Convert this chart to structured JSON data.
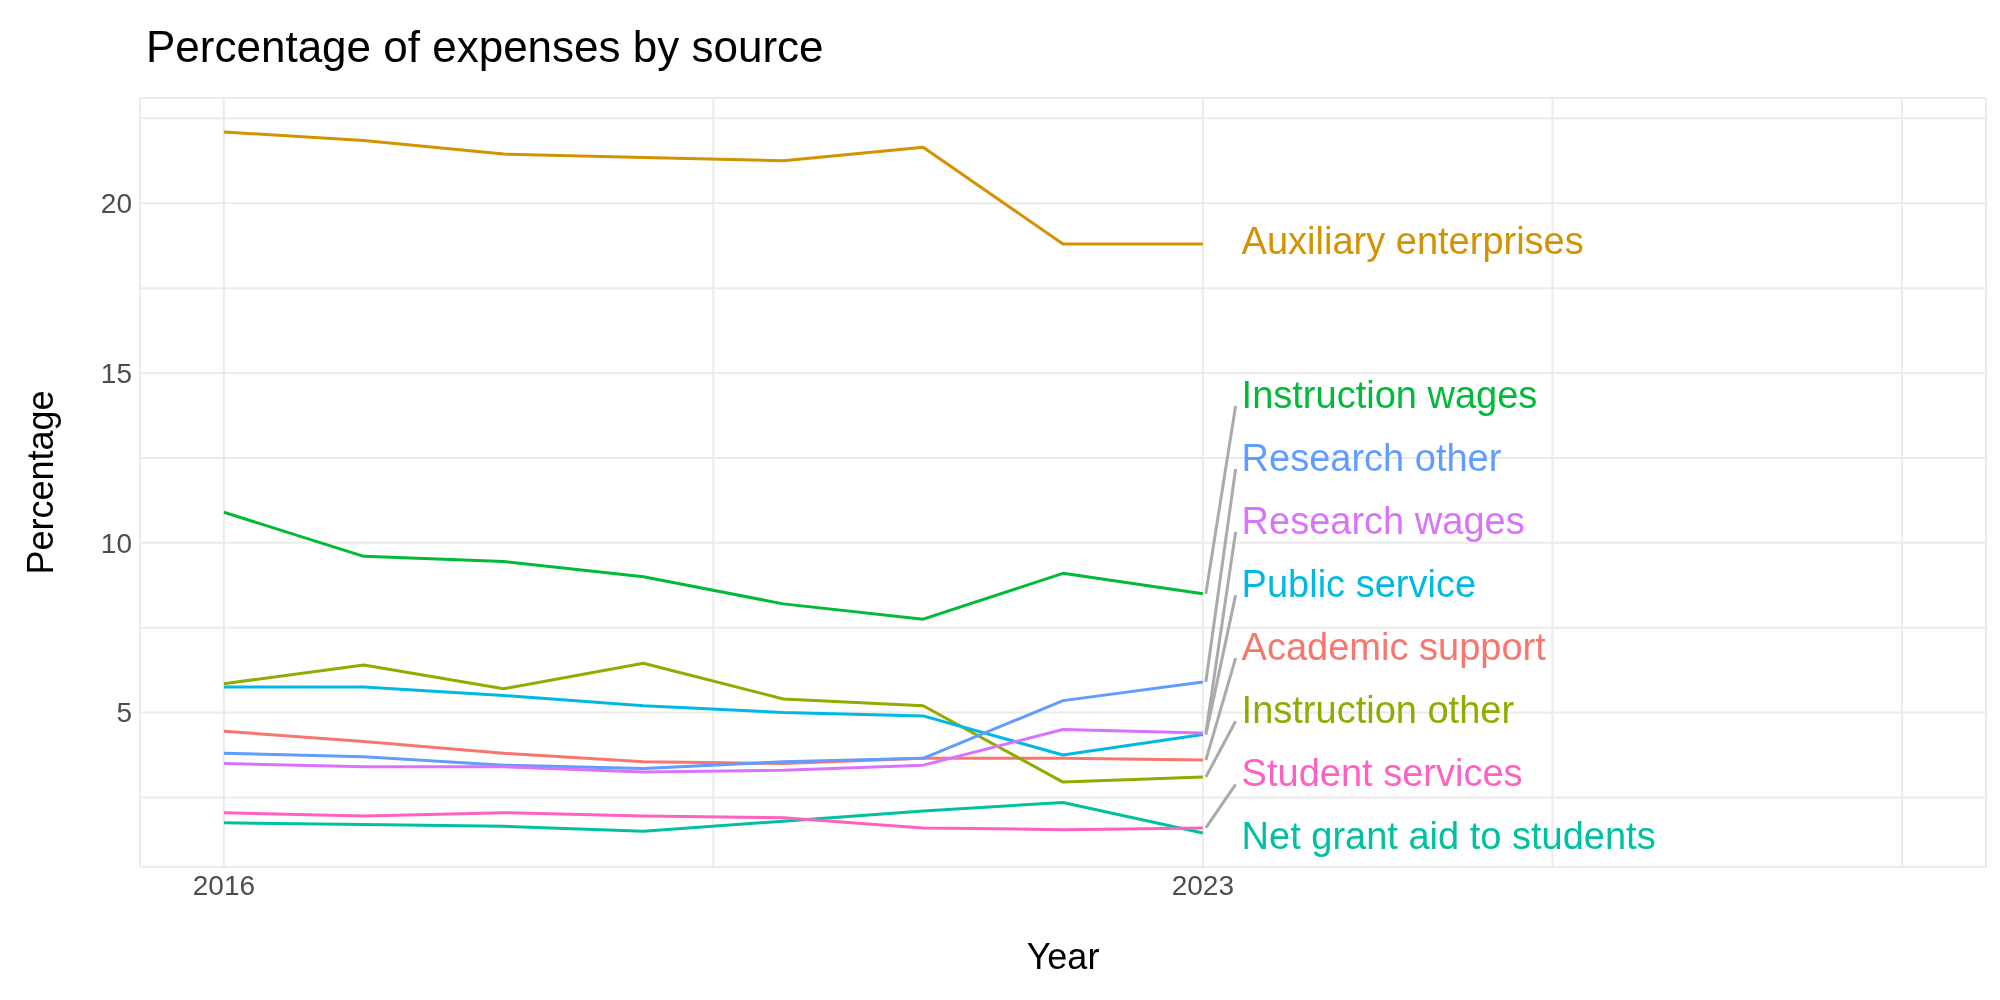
{
  "chart_data": {
    "type": "line",
    "title": "Percentage of expenses by source",
    "xlabel": "Year",
    "ylabel": "Percentage",
    "x": [
      2016,
      2017,
      2018,
      2019,
      2020,
      2021,
      2022,
      2023
    ],
    "series": [
      {
        "name": "Academic support",
        "color": "#f8766d",
        "values": [
          4.45,
          4.15,
          3.8,
          3.55,
          3.5,
          3.65,
          3.65,
          3.6
        ]
      },
      {
        "name": "Auxiliary enterprises",
        "color": "#d39200",
        "values": [
          22.1,
          21.85,
          21.45,
          21.35,
          21.25,
          21.65,
          18.8,
          18.8
        ]
      },
      {
        "name": "Instruction other",
        "color": "#93aa00",
        "values": [
          5.85,
          6.4,
          5.7,
          6.45,
          5.4,
          5.2,
          2.95,
          3.1
        ]
      },
      {
        "name": "Instruction wages",
        "color": "#00ba38",
        "values": [
          10.9,
          9.6,
          9.45,
          9.0,
          8.2,
          7.75,
          9.1,
          8.5
        ]
      },
      {
        "name": "Net grant aid to students",
        "color": "#00c19f",
        "values": [
          1.75,
          1.7,
          1.65,
          1.5,
          1.8,
          2.1,
          2.35,
          1.45
        ]
      },
      {
        "name": "Public service",
        "color": "#00b9e3",
        "values": [
          5.75,
          5.75,
          5.5,
          5.2,
          5.0,
          4.9,
          3.75,
          4.35
        ]
      },
      {
        "name": "Research other",
        "color": "#619cff",
        "values": [
          3.8,
          3.7,
          3.45,
          3.35,
          3.55,
          3.65,
          5.35,
          5.9
        ]
      },
      {
        "name": "Research wages",
        "color": "#db72fb",
        "values": [
          3.5,
          3.4,
          3.4,
          3.25,
          3.3,
          3.45,
          4.5,
          4.4
        ]
      },
      {
        "name": "Student services",
        "color": "#ff61c3",
        "values": [
          2.05,
          1.95,
          2.05,
          1.95,
          1.9,
          1.6,
          1.55,
          1.6
        ]
      }
    ],
    "xlim": [
      2015.4,
      2028.6
    ],
    "xticks": [
      2016,
      {
        "value": 2019.5,
        "label": null
      },
      2023,
      {
        "value": 2025.5,
        "label": null
      },
      {
        "value": 2028,
        "label": null
      }
    ],
    "ylim": [
      0.45,
      23.1
    ],
    "yticks": [
      {
        "value": 2.5,
        "label": null
      },
      5,
      {
        "value": 7.5,
        "label": null
      },
      10,
      {
        "value": 12.5,
        "label": null
      },
      15,
      {
        "value": 17.5,
        "label": null
      },
      20,
      {
        "value": 22.5,
        "label": null
      }
    ],
    "grid": true,
    "legend": false,
    "line_style": "solid",
    "marker": "none"
  }
}
